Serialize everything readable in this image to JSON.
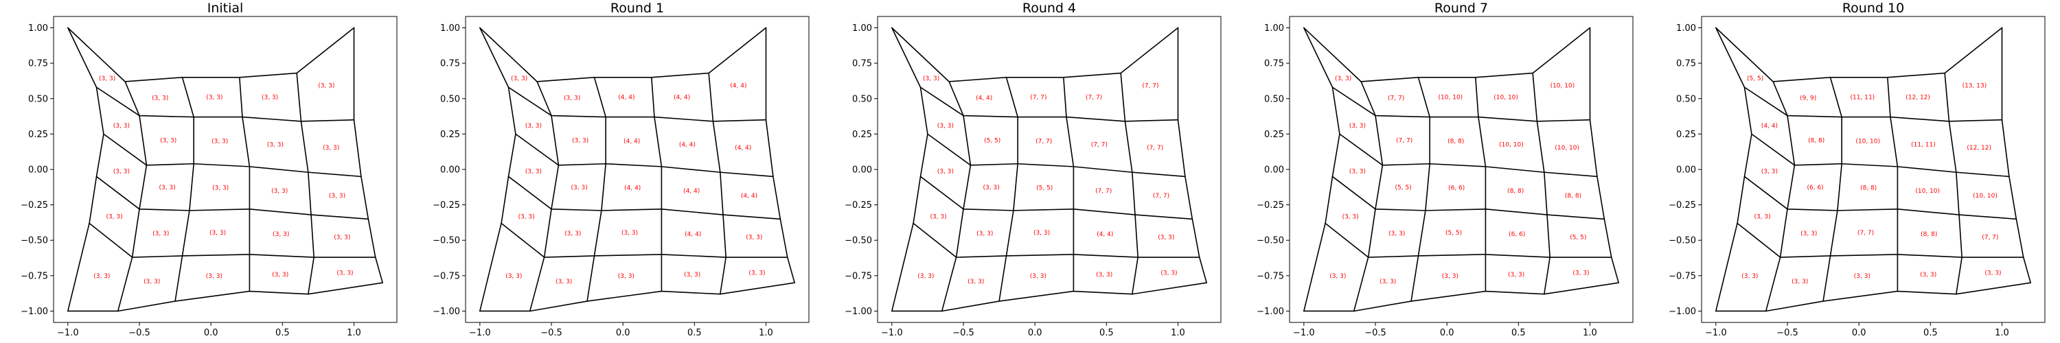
{
  "figure": {
    "x_ticks": [
      "−1.0",
      "−0.5",
      "0.0",
      "0.5",
      "1.0"
    ],
    "y_ticks": [
      "1.00",
      "0.75",
      "0.50",
      "0.25",
      "0.00",
      "−0.25",
      "−0.50",
      "−0.75",
      "−1.00"
    ],
    "x_tick_values": [
      -1.0,
      -0.5,
      0.0,
      0.5,
      1.0
    ],
    "y_tick_values": [
      1.0,
      0.75,
      0.5,
      0.25,
      0.0,
      -0.25,
      -0.5,
      -0.75,
      -1.0
    ],
    "xlim": [
      -1.1,
      1.3
    ],
    "ylim": [
      -1.08,
      1.08
    ],
    "line_color": "#000000",
    "label_color": "#ff0000"
  },
  "mesh_nodes": [
    [
      [
        -1.0,
        1.0
      ],
      [
        -0.8,
        0.58
      ],
      [
        -0.75,
        0.25
      ],
      [
        -0.8,
        -0.05
      ],
      [
        -0.85,
        -0.38
      ],
      [
        -0.9,
        -0.66
      ],
      [
        -1.0,
        -1.0
      ]
    ],
    [
      [
        -0.6,
        0.62
      ],
      [
        -0.5,
        0.38
      ],
      [
        -0.45,
        0.03
      ],
      [
        -0.5,
        -0.28
      ],
      [
        -0.55,
        -0.62
      ],
      [
        -0.65,
        -1.0
      ]
    ],
    [
      [
        -0.2,
        0.65
      ],
      [
        -0.12,
        0.37
      ],
      [
        -0.12,
        0.04
      ],
      [
        -0.15,
        -0.29
      ],
      [
        -0.2,
        -0.61
      ],
      [
        -0.25,
        -0.93
      ]
    ],
    [
      [
        0.2,
        0.65
      ],
      [
        0.22,
        0.37
      ],
      [
        0.27,
        0.02
      ],
      [
        0.27,
        -0.28
      ],
      [
        0.27,
        -0.6
      ],
      [
        0.27,
        -0.86
      ]
    ],
    [
      [
        0.6,
        0.68
      ],
      [
        0.63,
        0.34
      ],
      [
        0.68,
        -0.02
      ],
      [
        0.7,
        -0.32
      ],
      [
        0.72,
        -0.62
      ],
      [
        0.68,
        -0.88
      ]
    ],
    [
      [
        1.0,
        1.0
      ],
      [
        1.0,
        0.35
      ],
      [
        1.05,
        -0.05
      ],
      [
        1.1,
        -0.35
      ],
      [
        1.15,
        -0.62
      ],
      [
        1.2,
        -0.8
      ],
      [
        1.0,
        -1.0
      ]
    ]
  ],
  "mesh_rows": [
    [
      [
        -1.0,
        1.0
      ],
      [
        -0.8,
        0.58
      ],
      [
        -0.6,
        0.62
      ],
      [
        -0.2,
        0.65
      ],
      [
        0.2,
        0.65
      ],
      [
        0.6,
        0.68
      ],
      [
        1.0,
        1.0
      ]
    ],
    [
      [
        -0.8,
        0.58
      ],
      [
        -0.75,
        0.48
      ],
      [
        -0.5,
        0.38
      ],
      [
        -0.12,
        0.37
      ],
      [
        0.22,
        0.37
      ],
      [
        0.63,
        0.34
      ],
      [
        1.0,
        0.35
      ]
    ],
    [
      [
        -0.75,
        0.25
      ],
      [
        -0.6,
        0.05
      ],
      [
        -0.45,
        0.03
      ],
      [
        -0.12,
        0.04
      ],
      [
        0.27,
        0.02
      ],
      [
        0.68,
        -0.02
      ],
      [
        1.05,
        -0.05
      ]
    ],
    [
      [
        -0.8,
        -0.05
      ],
      [
        -0.85,
        -0.28
      ],
      [
        -0.5,
        -0.28
      ],
      [
        -0.15,
        -0.29
      ],
      [
        0.27,
        -0.28
      ],
      [
        0.7,
        -0.32
      ],
      [
        1.1,
        -0.35
      ]
    ],
    [
      [
        -0.85,
        -0.38
      ],
      [
        -0.9,
        -0.66
      ],
      [
        -0.55,
        -0.62
      ],
      [
        -0.2,
        -0.61
      ],
      [
        0.27,
        -0.6
      ],
      [
        0.72,
        -0.62
      ],
      [
        1.15,
        -0.62
      ]
    ],
    [
      [
        -1.0,
        -1.0
      ],
      [
        -0.65,
        -1.0
      ],
      [
        -0.25,
        -0.93
      ],
      [
        0.27,
        -0.86
      ],
      [
        0.68,
        -0.88
      ],
      [
        1.0,
        -1.0
      ]
    ]
  ],
  "panels": [
    {
      "title": "Initial",
      "cells": [
        [
          "(3, 3)",
          "(3, 3)",
          "(3, 3)",
          "(3, 3)",
          "(3, 3)"
        ],
        [
          "(3, 3)",
          "(3, 3)",
          "(3, 3)",
          "(3, 3)",
          "(3, 3)"
        ],
        [
          "(3, 3)",
          "(3, 3)",
          "(3, 3)",
          "(3, 3)",
          "(3, 3)"
        ],
        [
          "(3, 3)",
          "(3, 3)",
          "(3, 3)",
          "(3, 3)",
          "(3, 3)"
        ],
        [
          "(3, 3)",
          "(3, 3)",
          "(3, 3)",
          "(3, 3)",
          "(3, 3)"
        ]
      ]
    },
    {
      "title": "Round 1",
      "cells": [
        [
          "(3, 3)",
          "(3, 3)",
          "(4, 4)",
          "(4, 4)",
          "(4, 4)"
        ],
        [
          "(3, 3)",
          "(3, 3)",
          "(4, 4)",
          "(4, 4)",
          "(4, 4)"
        ],
        [
          "(3, 3)",
          "(3, 3)",
          "(4, 4)",
          "(4, 4)",
          "(4, 4)"
        ],
        [
          "(3, 3)",
          "(3, 3)",
          "(3, 3)",
          "(4, 4)",
          "(3, 3)"
        ],
        [
          "(3, 3)",
          "(3, 3)",
          "(3, 3)",
          "(3, 3)",
          "(3, 3)"
        ]
      ]
    },
    {
      "title": "Round 4",
      "cells": [
        [
          "(3, 3)",
          "(4, 4)",
          "(7, 7)",
          "(7, 7)",
          "(7, 7)"
        ],
        [
          "(3, 3)",
          "(5, 5)",
          "(7, 7)",
          "(7, 7)",
          "(7, 7)"
        ],
        [
          "(3, 3)",
          "(3, 3)",
          "(5, 5)",
          "(7, 7)",
          "(7, 7)"
        ],
        [
          "(3, 3)",
          "(3, 3)",
          "(3, 3)",
          "(4, 4)",
          "(3, 3)"
        ],
        [
          "(3, 3)",
          "(3, 3)",
          "(3, 3)",
          "(3, 3)",
          "(3, 3)"
        ]
      ]
    },
    {
      "title": "Round 7",
      "cells": [
        [
          "(3, 3)",
          "(7, 7)",
          "(10, 10)",
          "(10, 10)",
          "(10, 10)"
        ],
        [
          "(3, 3)",
          "(7, 7)",
          "(8, 8)",
          "(10, 10)",
          "(10, 10)"
        ],
        [
          "(3, 3)",
          "(5, 5)",
          "(6, 6)",
          "(8, 8)",
          "(8, 8)"
        ],
        [
          "(3, 3)",
          "(3, 3)",
          "(5, 5)",
          "(6, 6)",
          "(5, 5)"
        ],
        [
          "(3, 3)",
          "(3, 3)",
          "(3, 3)",
          "(3, 3)",
          "(3, 3)"
        ]
      ]
    },
    {
      "title": "Round 10",
      "cells": [
        [
          "(5, 5)",
          "(9, 9)",
          "(11, 11)",
          "(12, 12)",
          "(13, 13)"
        ],
        [
          "(4, 4)",
          "(8, 8)",
          "(10, 10)",
          "(11, 11)",
          "(12, 12)"
        ],
        [
          "(3, 3)",
          "(6, 6)",
          "(8, 8)",
          "(10, 10)",
          "(10, 10)"
        ],
        [
          "(3, 3)",
          "(3, 3)",
          "(7, 7)",
          "(8, 8)",
          "(7, 7)"
        ],
        [
          "(3, 3)",
          "(3, 3)",
          "(3, 3)",
          "(3, 3)",
          "(3, 3)"
        ]
      ]
    }
  ]
}
